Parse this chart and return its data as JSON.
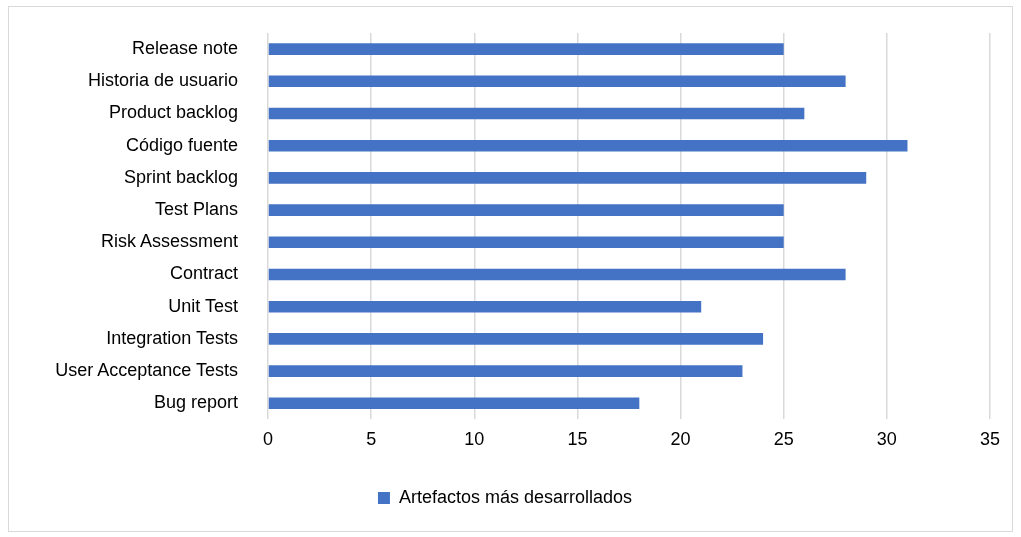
{
  "chart_data": {
    "type": "bar",
    "orientation": "horizontal",
    "categories": [
      "Release note",
      "Historia de usuario",
      "Product backlog",
      "Código fuente",
      "Sprint backlog",
      "Test Plans",
      "Risk Assessment",
      "Contract",
      "Unit Test",
      "Integration Tests",
      "User Acceptance Tests",
      "Bug report"
    ],
    "series": [
      {
        "name": "Artefactos más desarrollados",
        "color": "#4472c4",
        "values": [
          25,
          28,
          26,
          31,
          29,
          25,
          25,
          28,
          21,
          24,
          23,
          18
        ]
      }
    ],
    "xlim": [
      0,
      35
    ],
    "xticks": [
      0,
      5,
      10,
      15,
      20,
      25,
      30,
      35
    ],
    "grid": "x",
    "legend": "bottom"
  }
}
